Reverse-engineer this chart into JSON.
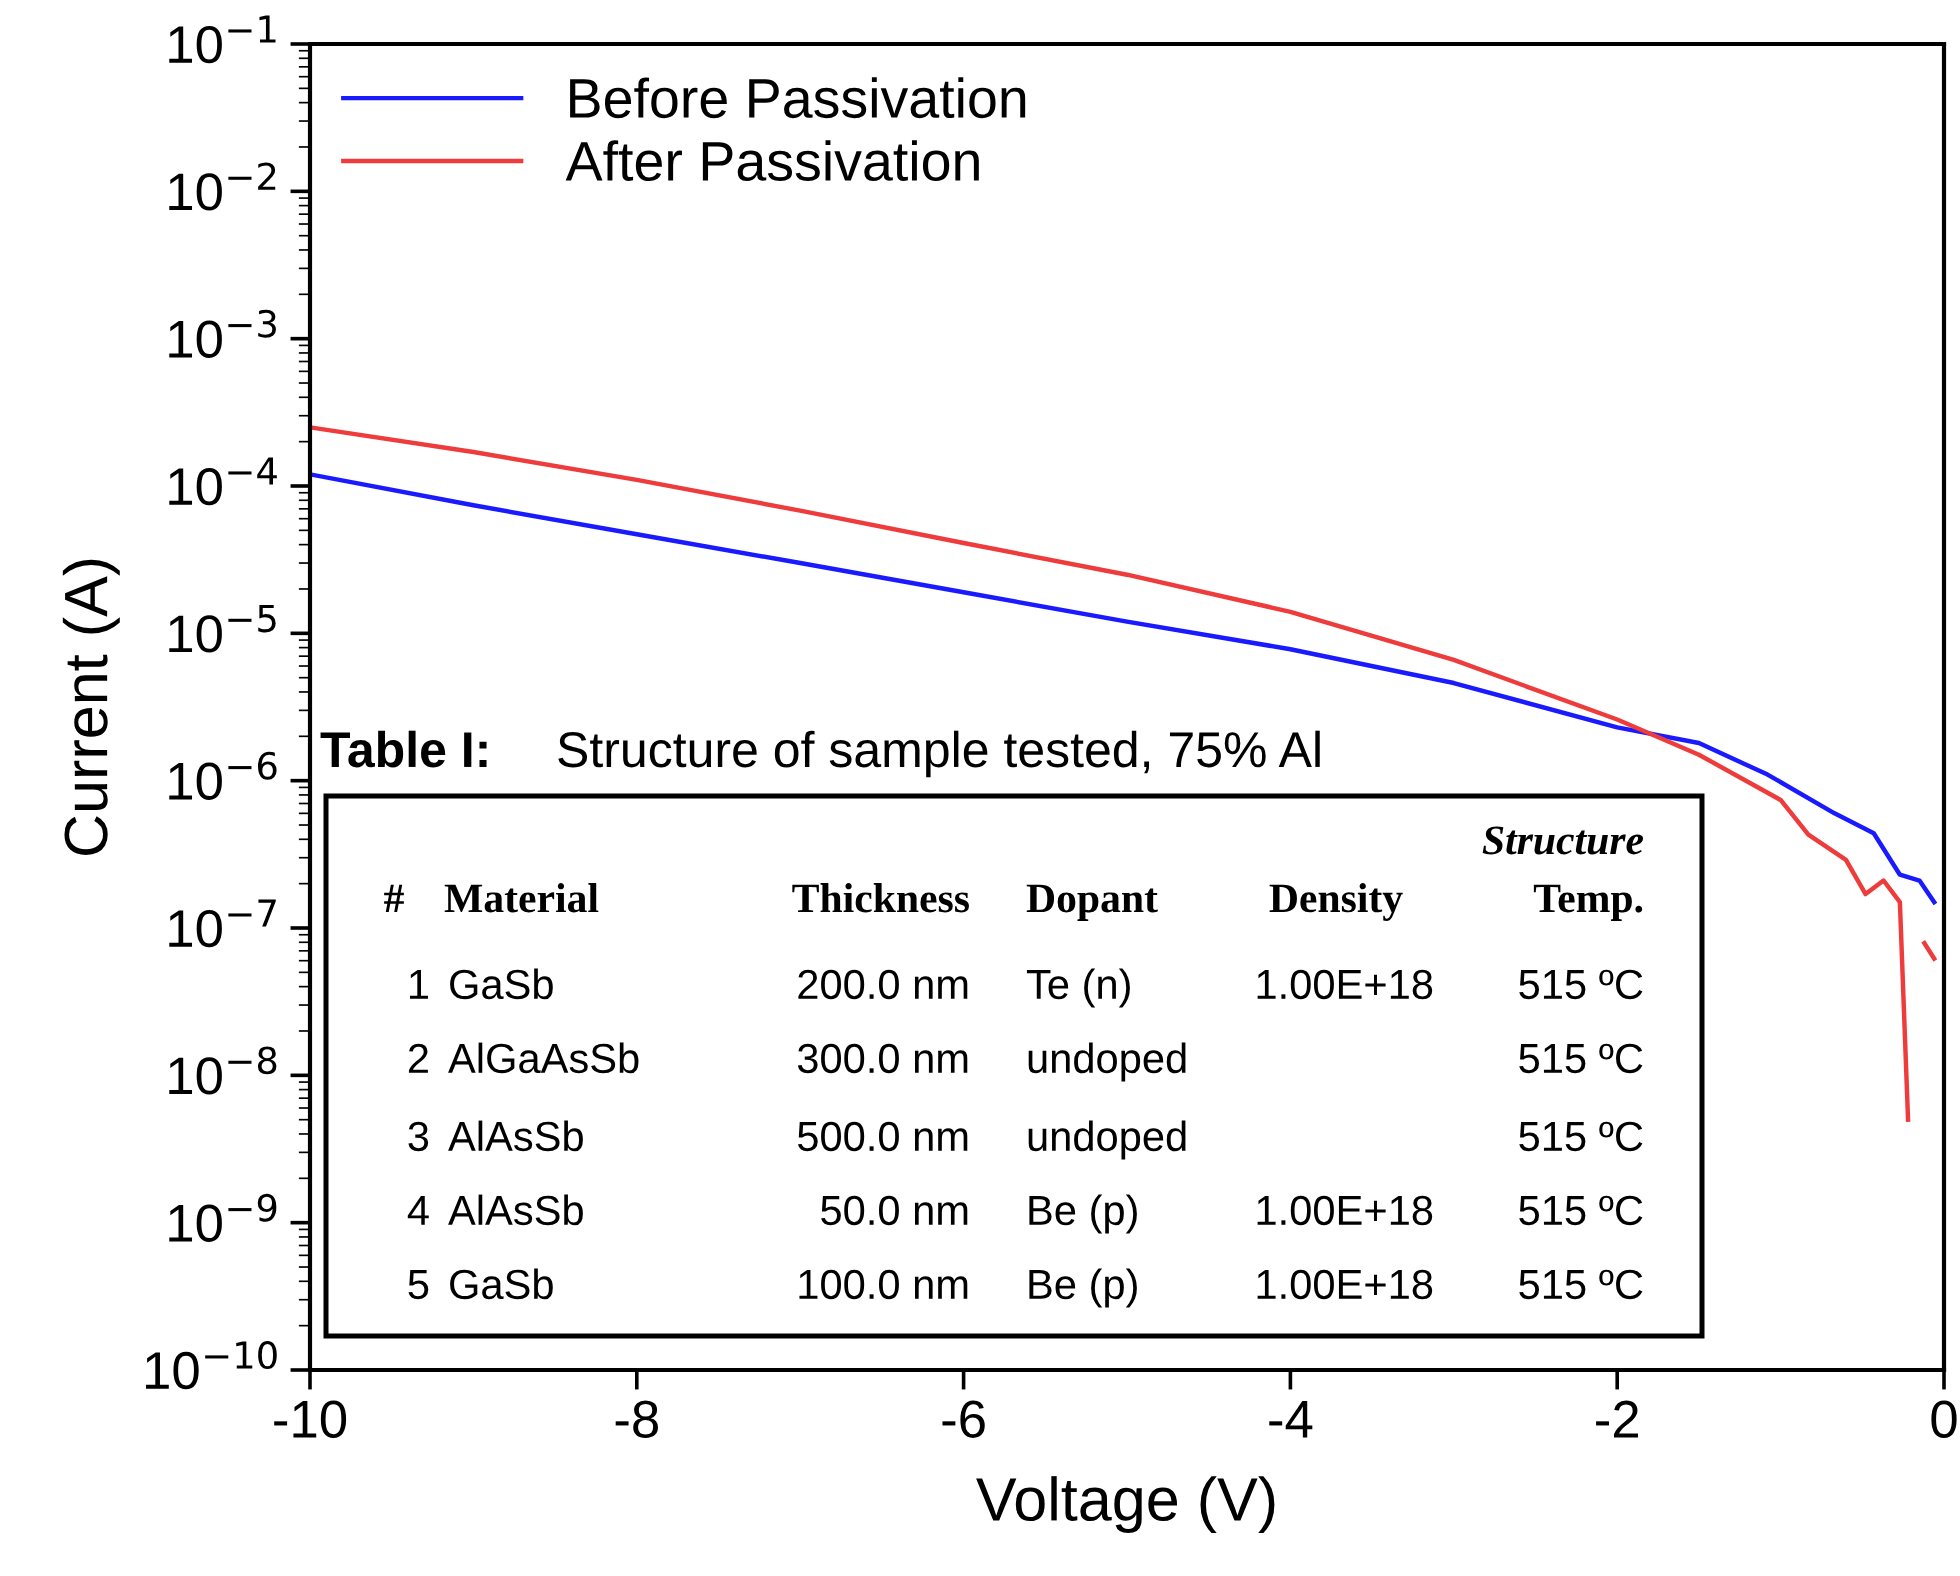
{
  "chart_data": {
    "type": "line",
    "xlabel": "Voltage (V)",
    "ylabel": "Current (A)",
    "log": "y",
    "xlim": [
      -10,
      0
    ],
    "ylim": [
      1e-10,
      0.1
    ],
    "xticks": [
      -10,
      -8,
      -6,
      -4,
      -2,
      0
    ],
    "yticks": [
      {
        "value": 1e-10,
        "label": "10$^{−10}$"
      },
      {
        "value": 1e-09,
        "label": "10$^{−9}$"
      },
      {
        "value": 1e-08,
        "label": "10$^{−8}$"
      },
      {
        "value": 1e-07,
        "label": "10$^{−7}$"
      },
      {
        "value": 1e-06,
        "label": "10$^{−6}$"
      },
      {
        "value": 1e-05,
        "label": "10$^{−5}$"
      },
      {
        "value": 0.0001,
        "label": "10$^{−4}$"
      },
      {
        "value": 0.001,
        "label": "10$^{−3}$"
      },
      {
        "value": 0.01,
        "label": "10$^{−2}$"
      },
      {
        "value": 0.1,
        "label": "10$^{−1}$"
      }
    ],
    "grid": false,
    "legend": "top left",
    "line_style": "solid",
    "marker": "none",
    "series": [
      {
        "name": "Before Passivation",
        "color": "#1a1aff",
        "x": [
          -10,
          -9,
          -8,
          -7,
          -6,
          -5,
          -4,
          -3,
          -2,
          -1.5,
          -1.08,
          -0.67,
          -0.43,
          -0.27,
          -0.15,
          -0.06
        ],
        "values": [
          0.00012,
          7.4e-05,
          4.7e-05,
          3e-05,
          1.9e-05,
          1.2e-05,
          7.8e-06,
          4.6e-06,
          2.3e-06,
          1.8e-06,
          1.1e-06,
          6e-07,
          4.4e-07,
          2.3e-07,
          2.1e-07,
          1.5e-07
        ]
      },
      {
        "name": "After Passivation",
        "color": "#ee3b3b",
        "x": [
          -10,
          -9,
          -8,
          -7,
          -6,
          -5,
          -4,
          -3,
          -2,
          -1.5,
          -1,
          -0.83,
          -0.6,
          -0.48,
          -0.37,
          -0.27,
          -0.22,
          -0.17,
          -0.12,
          -0.06
        ],
        "values": [
          0.00025,
          0.00017,
          0.00011,
          6.8e-05,
          4.1e-05,
          2.5e-05,
          1.4e-05,
          6.6e-06,
          2.6e-06,
          1.5e-06,
          7.4e-07,
          4.3e-07,
          2.9e-07,
          1.7e-07,
          2.1e-07,
          1.5e-07,
          5e-09,
          null,
          7.9e-08,
          6.2e-08
        ]
      }
    ],
    "annotations": [
      "Table I:",
      "Structure of sample tested, 75% Al",
      "Structure",
      "#",
      "Material",
      "Thickness",
      "Dopant",
      "Density",
      "Temp.",
      "1",
      "GaSb",
      "200.0 nm",
      "Te (n)",
      "1.00E+18",
      "515 ºC",
      "2",
      "AlGaAsSb",
      "300.0 nm",
      "undoped",
      "515 ºC",
      "3",
      "AlAsSb",
      "500.0 nm",
      "undoped",
      "515 ºC",
      "4",
      "AlAsSb",
      "50.0 nm",
      "Be (p)",
      "1.00E+18",
      "515 ºC",
      "5",
      "GaSb",
      "100.0 nm",
      "Be (p)",
      "1.00E+18",
      "515 ºC"
    ]
  }
}
